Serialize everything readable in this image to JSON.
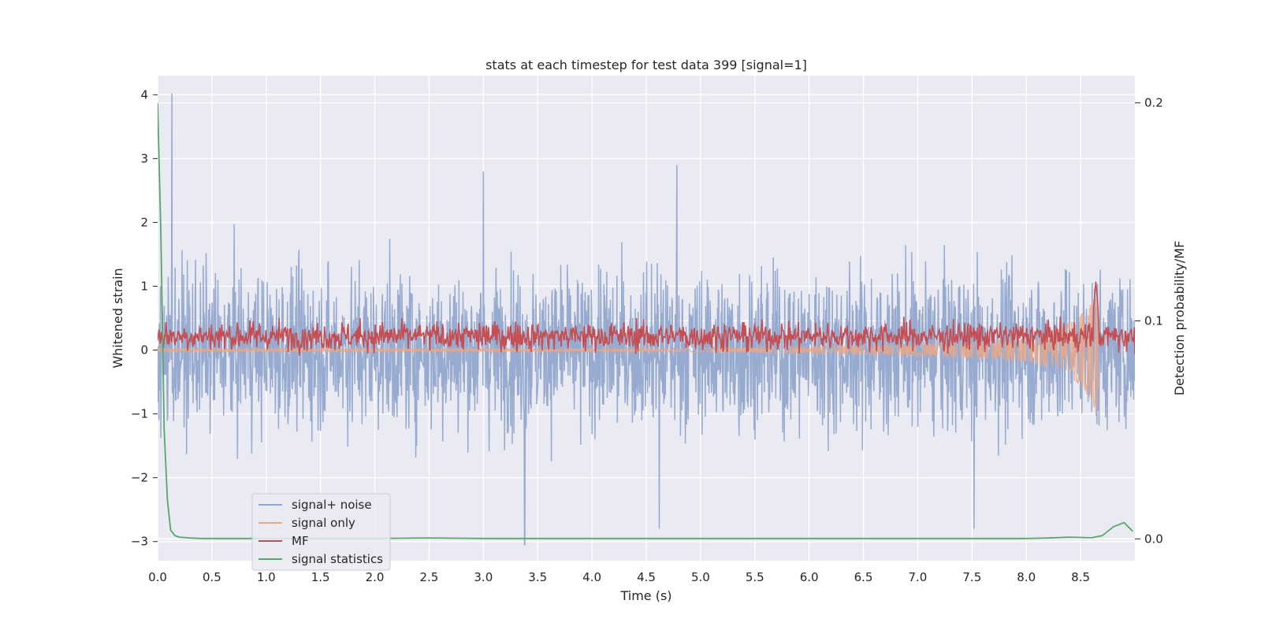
{
  "chart_data": {
    "type": "line",
    "title": "stats at each timestep for test data 399 [signal=1]",
    "xlabel": "Time (s)",
    "ylabel": "Whitened strain",
    "ylabel_right": "Detection probability/MF",
    "xlim": [
      0,
      9.0
    ],
    "ylim": [
      -3.3,
      4.3
    ],
    "ylim_right": [
      -0.01,
      0.2125
    ],
    "x_ticks": [
      0.0,
      0.5,
      1.0,
      1.5,
      2.0,
      2.5,
      3.0,
      3.5,
      4.0,
      4.5,
      5.0,
      5.5,
      6.0,
      6.5,
      7.0,
      7.5,
      8.0,
      8.5
    ],
    "x_tick_labels": [
      "0.0",
      "0.5",
      "1.0",
      "1.5",
      "2.0",
      "2.5",
      "3.0",
      "3.5",
      "4.0",
      "4.5",
      "5.0",
      "5.5",
      "6.0",
      "6.5",
      "7.0",
      "7.5",
      "8.0",
      "8.5"
    ],
    "y_ticks": [
      -3,
      -2,
      -1,
      0,
      1,
      2,
      3,
      4
    ],
    "y_tick_labels": [
      "−3",
      "−2",
      "−1",
      "0",
      "1",
      "2",
      "3",
      "4"
    ],
    "y_ticks_right": [
      0.0,
      0.1,
      0.2
    ],
    "y_tick_labels_right": [
      "0.0",
      "0.1",
      "0.2"
    ],
    "grid": true,
    "legend_position": "lower-left",
    "series": [
      {
        "name": "signal+ noise",
        "color": "#92a6cd",
        "axis": "left",
        "kind": "noise",
        "envelope": {
          "typical": 1.0,
          "max_abs": 4.0
        },
        "notable_points": [
          [
            0.13,
            4.02
          ],
          [
            3.38,
            -3.05
          ],
          [
            4.78,
            2.9
          ],
          [
            3.0,
            2.8
          ],
          [
            7.52,
            -2.8
          ],
          [
            4.62,
            -2.8
          ]
        ]
      },
      {
        "name": "signal only",
        "color": "#e8a889",
        "axis": "left",
        "kind": "chirp",
        "envelope_points": [
          [
            4.5,
            0.02
          ],
          [
            6.0,
            0.06
          ],
          [
            7.0,
            0.1
          ],
          [
            7.5,
            0.13
          ],
          [
            8.0,
            0.2
          ],
          [
            8.3,
            0.32
          ],
          [
            8.5,
            0.55
          ],
          [
            8.6,
            0.8
          ],
          [
            8.65,
            1.0
          ]
        ],
        "end_x": 8.66
      },
      {
        "name": "MF",
        "color": "#c44e52",
        "axis": "right",
        "kind": "noise",
        "baseline": 0.093,
        "spread": 0.006,
        "peak": [
          8.64,
          0.118
        ]
      },
      {
        "name": "signal statistics",
        "color": "#55a868",
        "axis": "right",
        "kind": "line",
        "x": [
          0.0,
          0.03,
          0.06,
          0.09,
          0.12,
          0.16,
          0.2,
          0.3,
          0.4,
          0.6,
          1.0,
          1.5,
          2.0,
          2.5,
          3.0,
          4.0,
          5.0,
          6.0,
          7.0,
          8.0,
          8.2,
          8.4,
          8.6,
          8.7,
          8.8,
          8.9,
          8.98
        ],
        "y": [
          0.2,
          0.14,
          0.05,
          0.018,
          0.004,
          0.0015,
          0.0008,
          0.0004,
          0.0002,
          0.0002,
          0.0002,
          0.0002,
          0.0002,
          0.0004,
          0.0002,
          0.0002,
          0.0002,
          0.0002,
          0.0002,
          0.0002,
          0.0004,
          0.0008,
          0.0005,
          0.0015,
          0.0055,
          0.0075,
          0.0035
        ]
      }
    ]
  }
}
